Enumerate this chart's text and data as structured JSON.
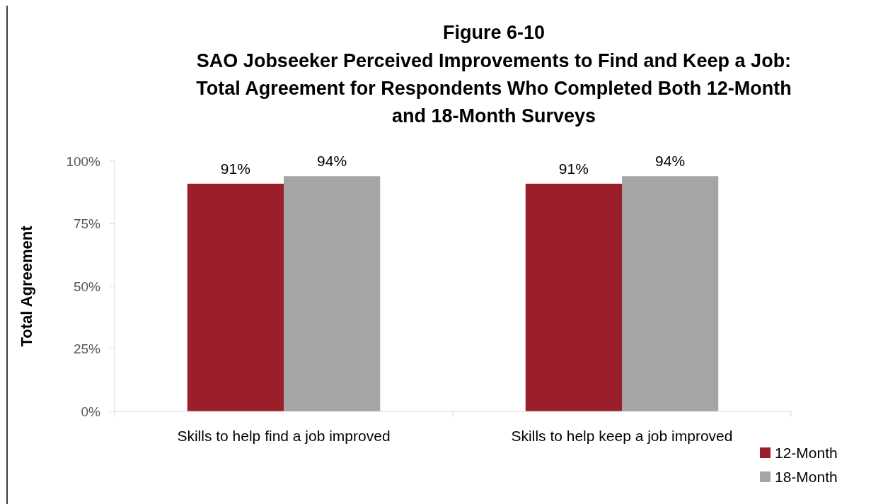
{
  "chart_data": {
    "type": "bar",
    "title": "Figure 6-10",
    "subtitle": "SAO Jobseeker Perceived Improvements to Find and Keep a Job: Total Agreement for Respondents Who Completed Both 12-Month and 18-Month Surveys",
    "ylabel": "Total Agreement",
    "categories": [
      "Skills to help find a job improved",
      "Skills to help keep a job improved"
    ],
    "series": [
      {
        "name": "12-Month",
        "color": "#9a1f2a",
        "values": [
          91,
          91
        ],
        "value_labels": [
          "91%",
          "91%"
        ]
      },
      {
        "name": "18-Month",
        "color": "#a5a5a5",
        "values": [
          94,
          94
        ],
        "value_labels": [
          "94%",
          "94%"
        ]
      }
    ],
    "ylim": [
      0,
      100
    ],
    "yticks": [
      {
        "value": 0,
        "label": "0%"
      },
      {
        "value": 25,
        "label": "25%"
      },
      {
        "value": 50,
        "label": "50%"
      },
      {
        "value": 75,
        "label": "75%"
      },
      {
        "value": 100,
        "label": "100%"
      }
    ],
    "grid": false,
    "legend": "bottom right"
  }
}
